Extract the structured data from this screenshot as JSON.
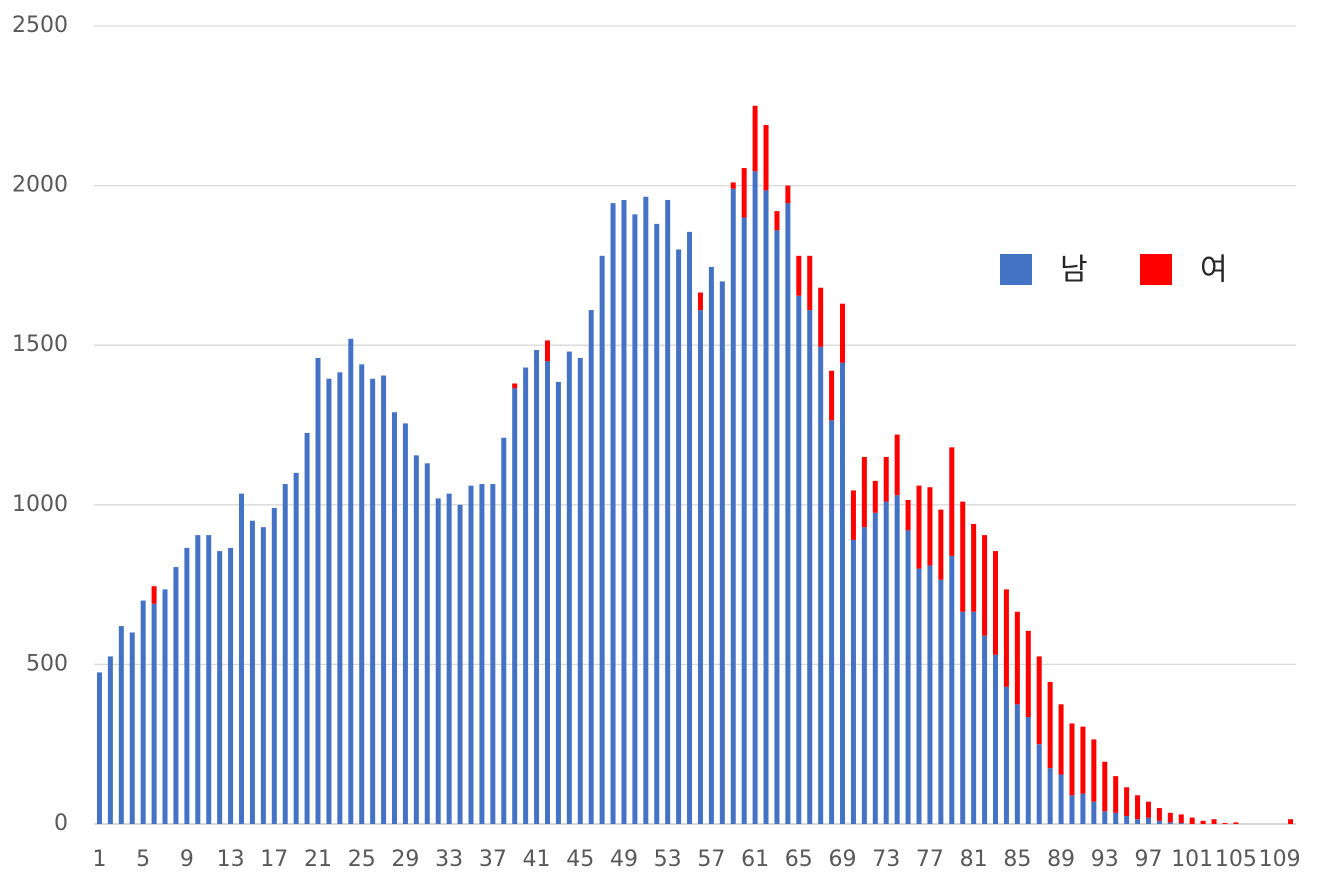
{
  "chart_data": {
    "type": "stacked_bar",
    "categories": [
      "1",
      null,
      null,
      null,
      "5",
      null,
      null,
      null,
      "9",
      null,
      null,
      null,
      "13",
      null,
      null,
      null,
      "17",
      null,
      null,
      null,
      "21",
      null,
      null,
      null,
      "25",
      null,
      null,
      null,
      "29",
      null,
      null,
      null,
      "33",
      null,
      null,
      null,
      "37",
      null,
      null,
      null,
      "41",
      null,
      null,
      null,
      "45",
      null,
      null,
      null,
      "49",
      null,
      null,
      null,
      "53",
      null,
      null,
      null,
      "57",
      null,
      null,
      null,
      "61",
      null,
      null,
      null,
      "65",
      null,
      null,
      null,
      "69",
      null,
      null,
      null,
      "73",
      null,
      null,
      null,
      "77",
      null,
      null,
      null,
      "81",
      null,
      null,
      null,
      "85",
      null,
      null,
      null,
      "89",
      null,
      null,
      null,
      "93",
      null,
      null,
      null,
      "97",
      null,
      null,
      null,
      "101",
      null,
      null,
      null,
      "105",
      null,
      null,
      null,
      "109",
      null
    ],
    "series": [
      {
        "name": "남",
        "color": "#4472c4",
        "values": [
          475,
          525,
          620,
          600,
          700,
          690,
          735,
          805,
          865,
          905,
          905,
          855,
          865,
          1035,
          950,
          930,
          990,
          1065,
          1100,
          1225,
          1460,
          1395,
          1415,
          1520,
          1440,
          1395,
          1405,
          1290,
          1255,
          1155,
          1130,
          1020,
          1035,
          1000,
          1060,
          1065,
          1065,
          1210,
          1365,
          1430,
          1485,
          1450,
          1385,
          1480,
          1460,
          1610,
          1780,
          1945,
          1955,
          1910,
          1965,
          1880,
          1955,
          1800,
          1855,
          1610,
          1745,
          1700,
          1990,
          1900,
          2045,
          1985,
          1860,
          1945,
          1655,
          1610,
          1495,
          1265,
          1445,
          890,
          930,
          975,
          1010,
          1030,
          920,
          800,
          810,
          765,
          840,
          665,
          665,
          590,
          530,
          430,
          375,
          335,
          250,
          175,
          155,
          90,
          95,
          70,
          40,
          35,
          25,
          15,
          20,
          10,
          5,
          3,
          0,
          0,
          0,
          0,
          0,
          0,
          0,
          0,
          0,
          0
        ]
      },
      {
        "name": "여",
        "color": "#ff0000",
        "values": [
          0,
          0,
          0,
          0,
          0,
          55,
          0,
          0,
          0,
          0,
          0,
          0,
          0,
          0,
          0,
          0,
          0,
          0,
          0,
          0,
          0,
          0,
          0,
          0,
          0,
          0,
          0,
          0,
          0,
          0,
          0,
          0,
          0,
          0,
          0,
          0,
          0,
          0,
          15,
          0,
          0,
          65,
          0,
          0,
          0,
          0,
          0,
          0,
          0,
          0,
          0,
          0,
          0,
          0,
          0,
          55,
          0,
          0,
          20,
          155,
          205,
          205,
          60,
          55,
          125,
          170,
          185,
          155,
          185,
          155,
          220,
          100,
          140,
          190,
          95,
          260,
          245,
          220,
          340,
          345,
          275,
          315,
          325,
          305,
          290,
          270,
          275,
          270,
          220,
          225,
          210,
          195,
          155,
          115,
          90,
          75,
          50,
          40,
          30,
          27,
          20,
          10,
          15,
          3,
          5,
          0,
          0,
          0,
          0,
          15
        ]
      }
    ],
    "ylim": [
      0,
      2500
    ],
    "yticks": [
      0,
      500,
      1000,
      1500,
      2000,
      2500
    ],
    "grid": true,
    "legend": "right"
  }
}
